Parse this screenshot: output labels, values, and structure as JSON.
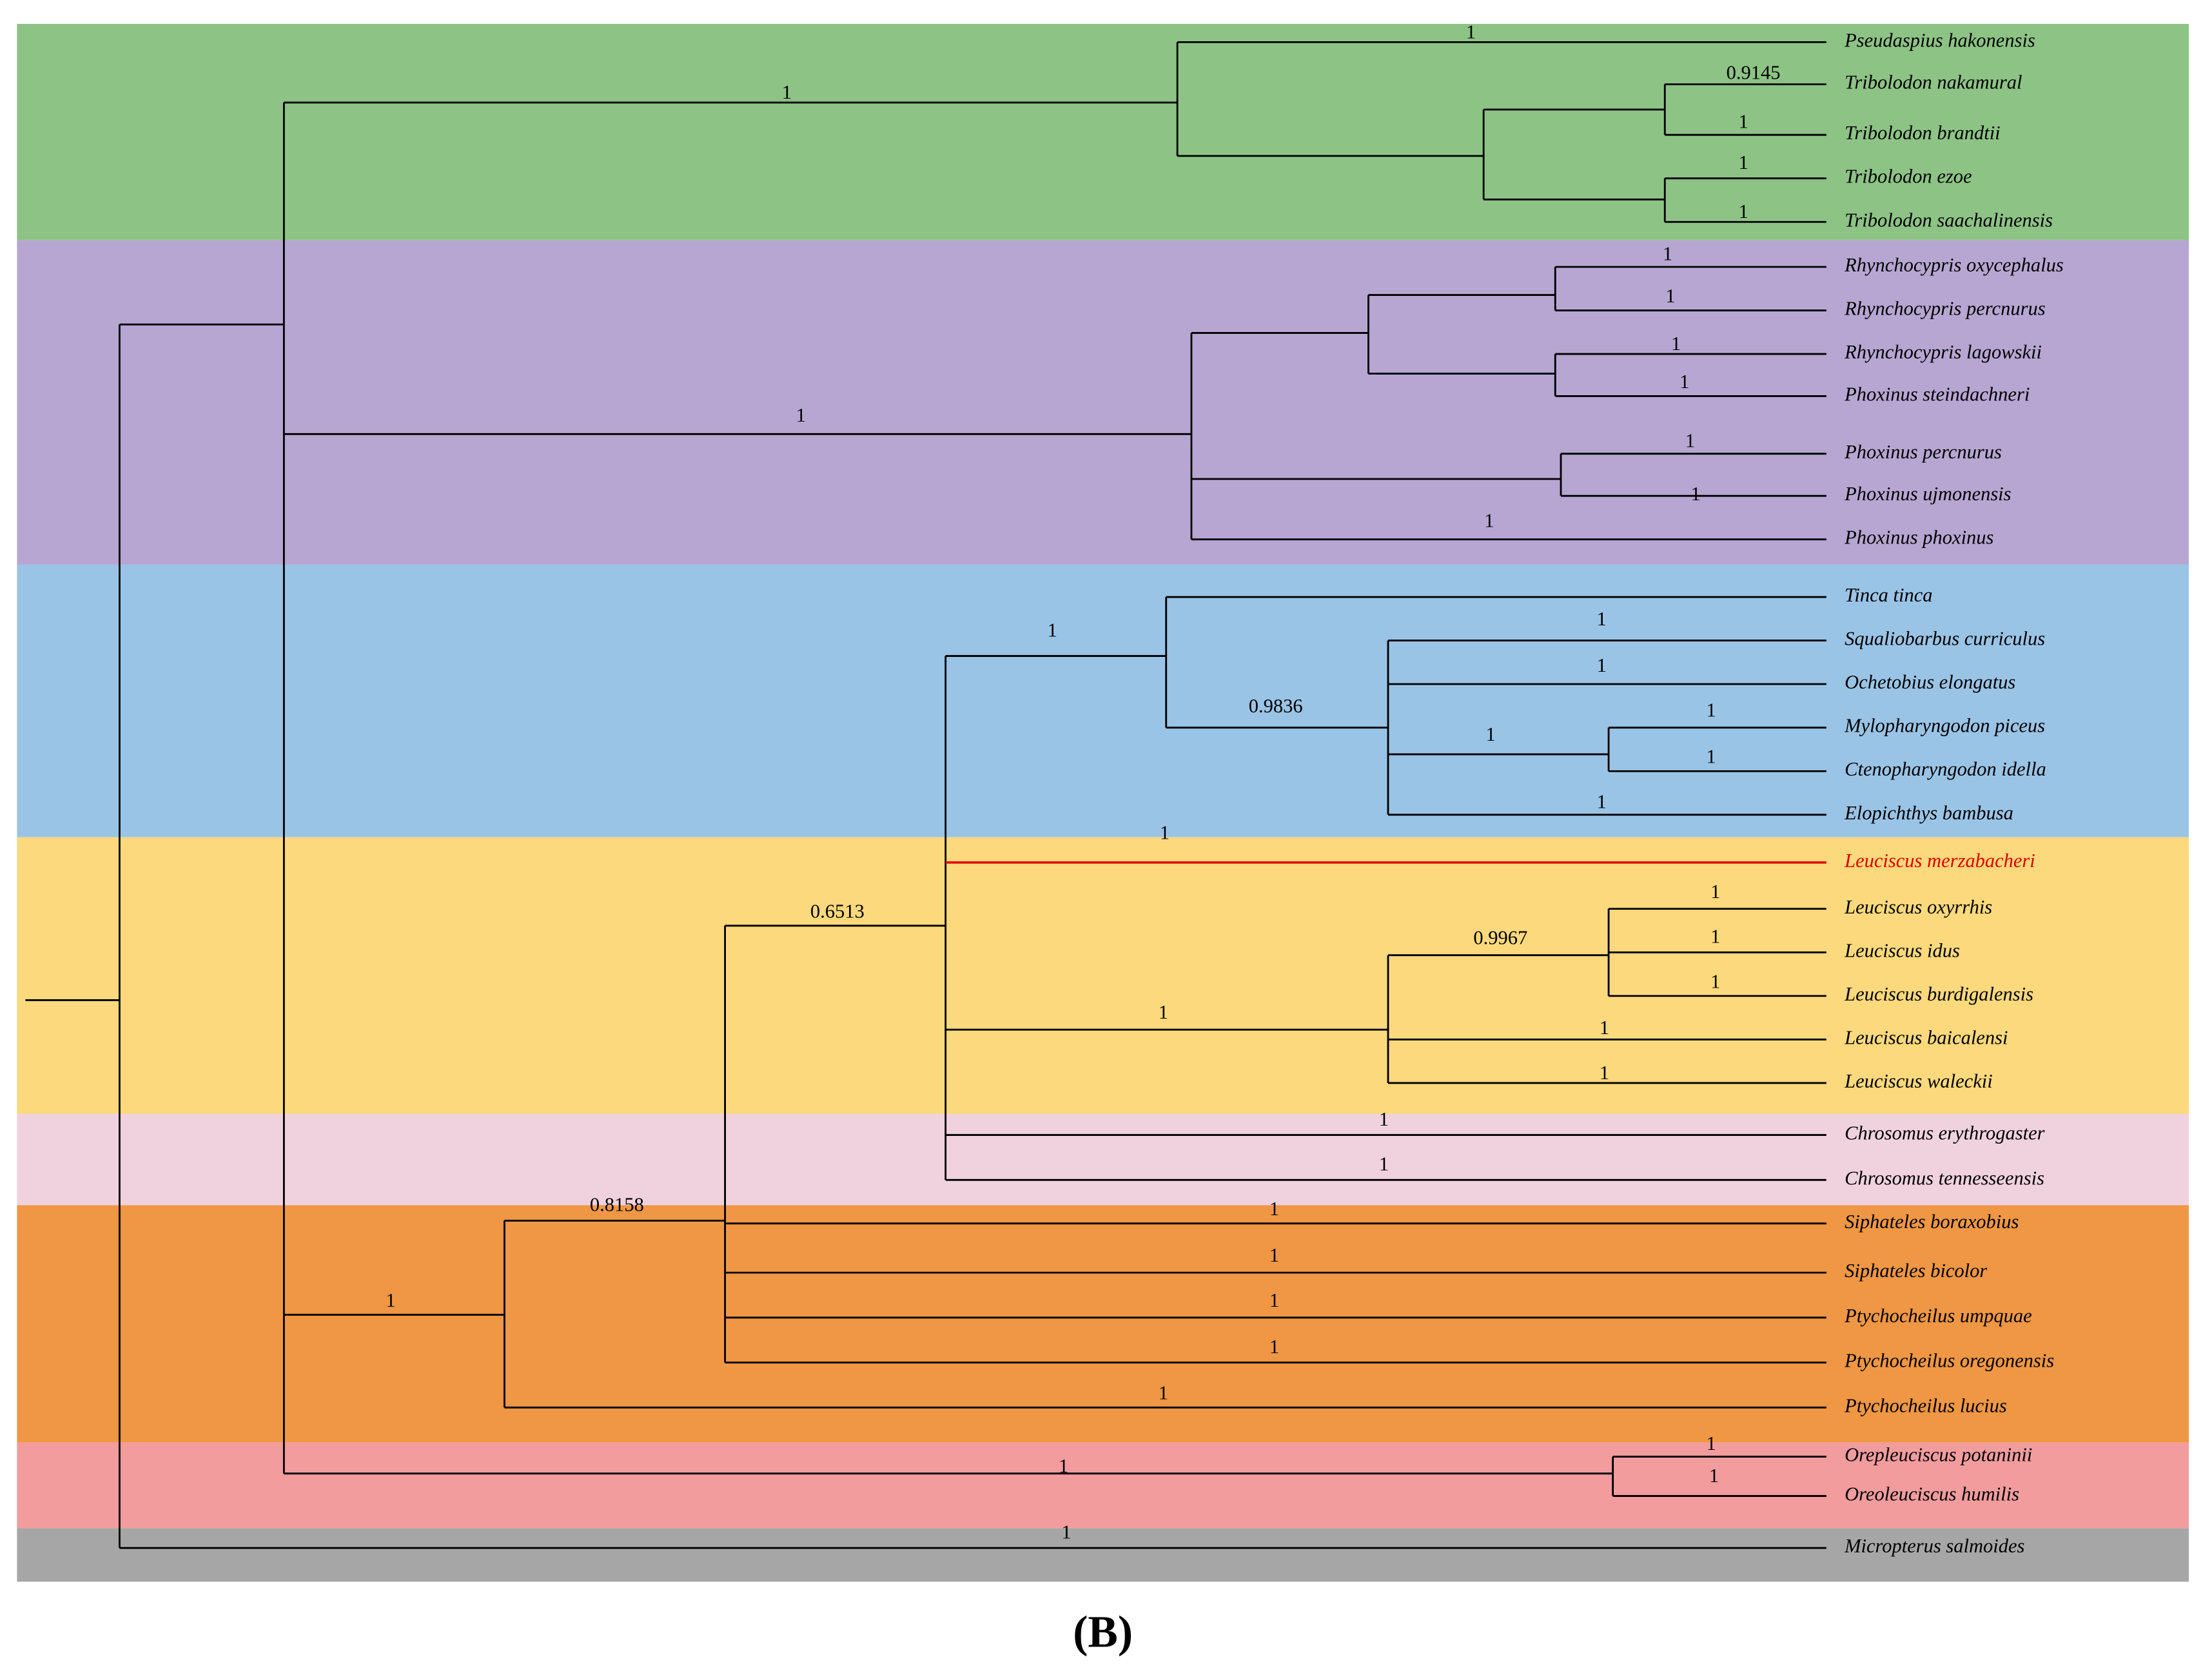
{
  "taxa": [
    {
      "name": "Pseudaspius hakonensis",
      "support": "1"
    },
    {
      "name": "Tribolodon nakamural",
      "support": "0.9145"
    },
    {
      "name": "Tribolodon brandtii",
      "support": "1"
    },
    {
      "name": "Tribolodon ezoe",
      "support": "1"
    },
    {
      "name": "Tribolodon saachalinensis",
      "support": "1"
    },
    {
      "name": "Rhynchocypris oxycephalus",
      "support": "1"
    },
    {
      "name": "Rhynchocypris percnurus",
      "support": "1"
    },
    {
      "name": "Rhynchocypris lagowskii",
      "support": "1"
    },
    {
      "name": "Phoxinus steindachneri",
      "support": "1"
    },
    {
      "name": "Phoxinus percnurus",
      "support": "1"
    },
    {
      "name": "Phoxinus ujmonensis",
      "support": "1"
    },
    {
      "name": "Phoxinus phoxinus",
      "support": "1"
    },
    {
      "name": "Tinca tinca"
    },
    {
      "name": "Squaliobarbus curriculus",
      "support": "1"
    },
    {
      "name": "Ochetobius elongatus",
      "support": "1"
    },
    {
      "name": "Mylopharyngodon piceus",
      "support": "1"
    },
    {
      "name": "Ctenopharyngodon idella",
      "support": "1"
    },
    {
      "name": "Elopichthys bambusa",
      "support": "1"
    },
    {
      "name": "Leuciscus merzabacheri",
      "support": "1"
    },
    {
      "name": "Leuciscus oxyrrhis",
      "support": "1"
    },
    {
      "name": "Leuciscus idus",
      "support": "1"
    },
    {
      "name": "Leuciscus burdigalensis",
      "support": "1"
    },
    {
      "name": "Leuciscus baicalensi",
      "support": "1"
    },
    {
      "name": "Leuciscus waleckii",
      "support": "1"
    },
    {
      "name": "Chrosomus erythrogaster",
      "support": "1"
    },
    {
      "name": "Chrosomus tennesseensis",
      "support": "1"
    },
    {
      "name": "Siphateles boraxobius",
      "support": "1"
    },
    {
      "name": "Siphateles bicolor",
      "support": "1"
    },
    {
      "name": "Ptychocheilus umpquae",
      "support": "1"
    },
    {
      "name": "Ptychocheilus oregonensis",
      "support": "1"
    },
    {
      "name": "Ptychocheilus lucius",
      "support": "1"
    },
    {
      "name": "Orepleuciscus potaninii",
      "support": "1"
    },
    {
      "name": "Oreoleuciscus humilis",
      "support": "1"
    },
    {
      "name": "Micropterus salmoides",
      "support": "1"
    }
  ],
  "clade_supports": [
    "1",
    "1",
    "1",
    "0.9836",
    "1",
    "0.6513",
    "1",
    "0.9967",
    "0.8158",
    "1",
    "1"
  ],
  "panel_label": "(B)"
}
